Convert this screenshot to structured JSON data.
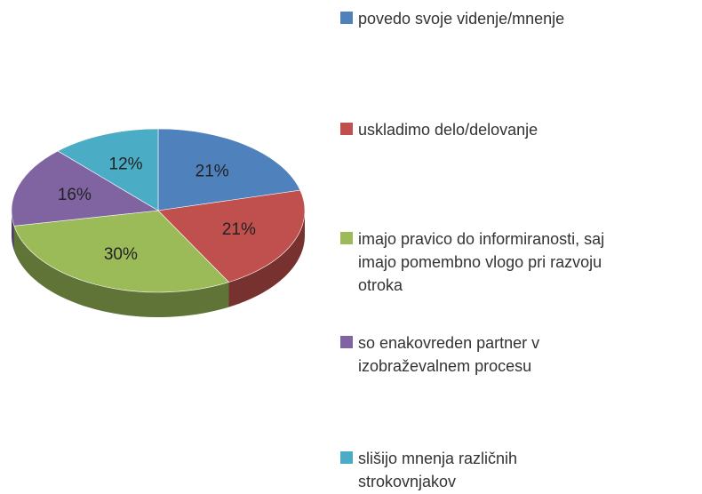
{
  "chart_data": {
    "type": "pie",
    "categories": [
      "povedo svoje videnje/mnenje",
      "uskladimo delo/delovanje",
      "imajo pravico do informiranosti, saj imajo pomembno vlogo pri razvoju otroka",
      "so enakovreden partner v izobraževalnem procesu",
      "slišijo mnenja različnih strokovnjakov"
    ],
    "values": [
      21,
      21,
      30,
      16,
      12
    ],
    "value_labels": [
      "21%",
      "21%",
      "30%",
      "16%",
      "12%"
    ],
    "colors": [
      "#4f81bd",
      "#c0504d",
      "#9bbb59",
      "#8064a2",
      "#4bacc6"
    ],
    "legend": "right"
  }
}
